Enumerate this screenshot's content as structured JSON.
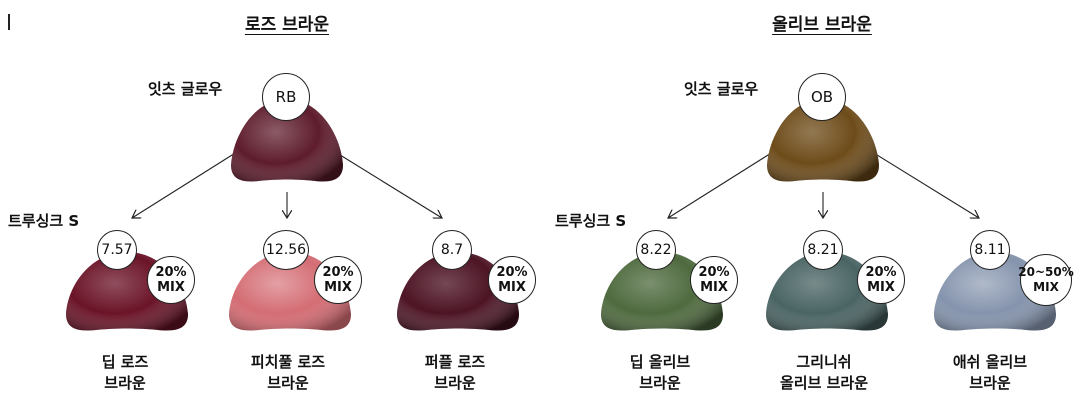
{
  "groups": [
    {
      "title": "로즈 브라운",
      "top_label": "잇츠 글로우",
      "top_code": "RB",
      "top_color": "#5e1c2c",
      "line_label": "트루싱크 S",
      "items": [
        {
          "code": "7.57",
          "mix_pct": "20%",
          "mix_word": "MIX",
          "name1": "딥 로즈",
          "name2": "브라운",
          "color": "#6b1428"
        },
        {
          "code": "12.56",
          "mix_pct": "20%",
          "mix_word": "MIX",
          "name1": "피치풀 로즈",
          "name2": "브라운",
          "color": "#d46d74"
        },
        {
          "code": "8.7",
          "mix_pct": "20%",
          "mix_word": "MIX",
          "name1": "퍼플 로즈",
          "name2": "브라운",
          "color": "#4d1424"
        }
      ]
    },
    {
      "title": "올리브 브라운",
      "top_label": "잇츠 글로우",
      "top_code": "OB",
      "top_color": "#6e4c1a",
      "line_label": "트루싱크 S",
      "items": [
        {
          "code": "8.22",
          "mix_pct": "20%",
          "mix_word": "MIX",
          "name1": "딥 올리브",
          "name2": "브라운",
          "color": "#4e6a3e"
        },
        {
          "code": "8.21",
          "mix_pct": "20%",
          "mix_word": "MIX",
          "name1": "그리니쉬",
          "name2": "올리브 브라운",
          "color": "#4a6464"
        },
        {
          "code": "8.11",
          "mix_pct": "20~50%",
          "mix_word": "MIX",
          "name1": "애쉬 올리브",
          "name2": "브라운",
          "color": "#8594ad"
        }
      ]
    }
  ]
}
